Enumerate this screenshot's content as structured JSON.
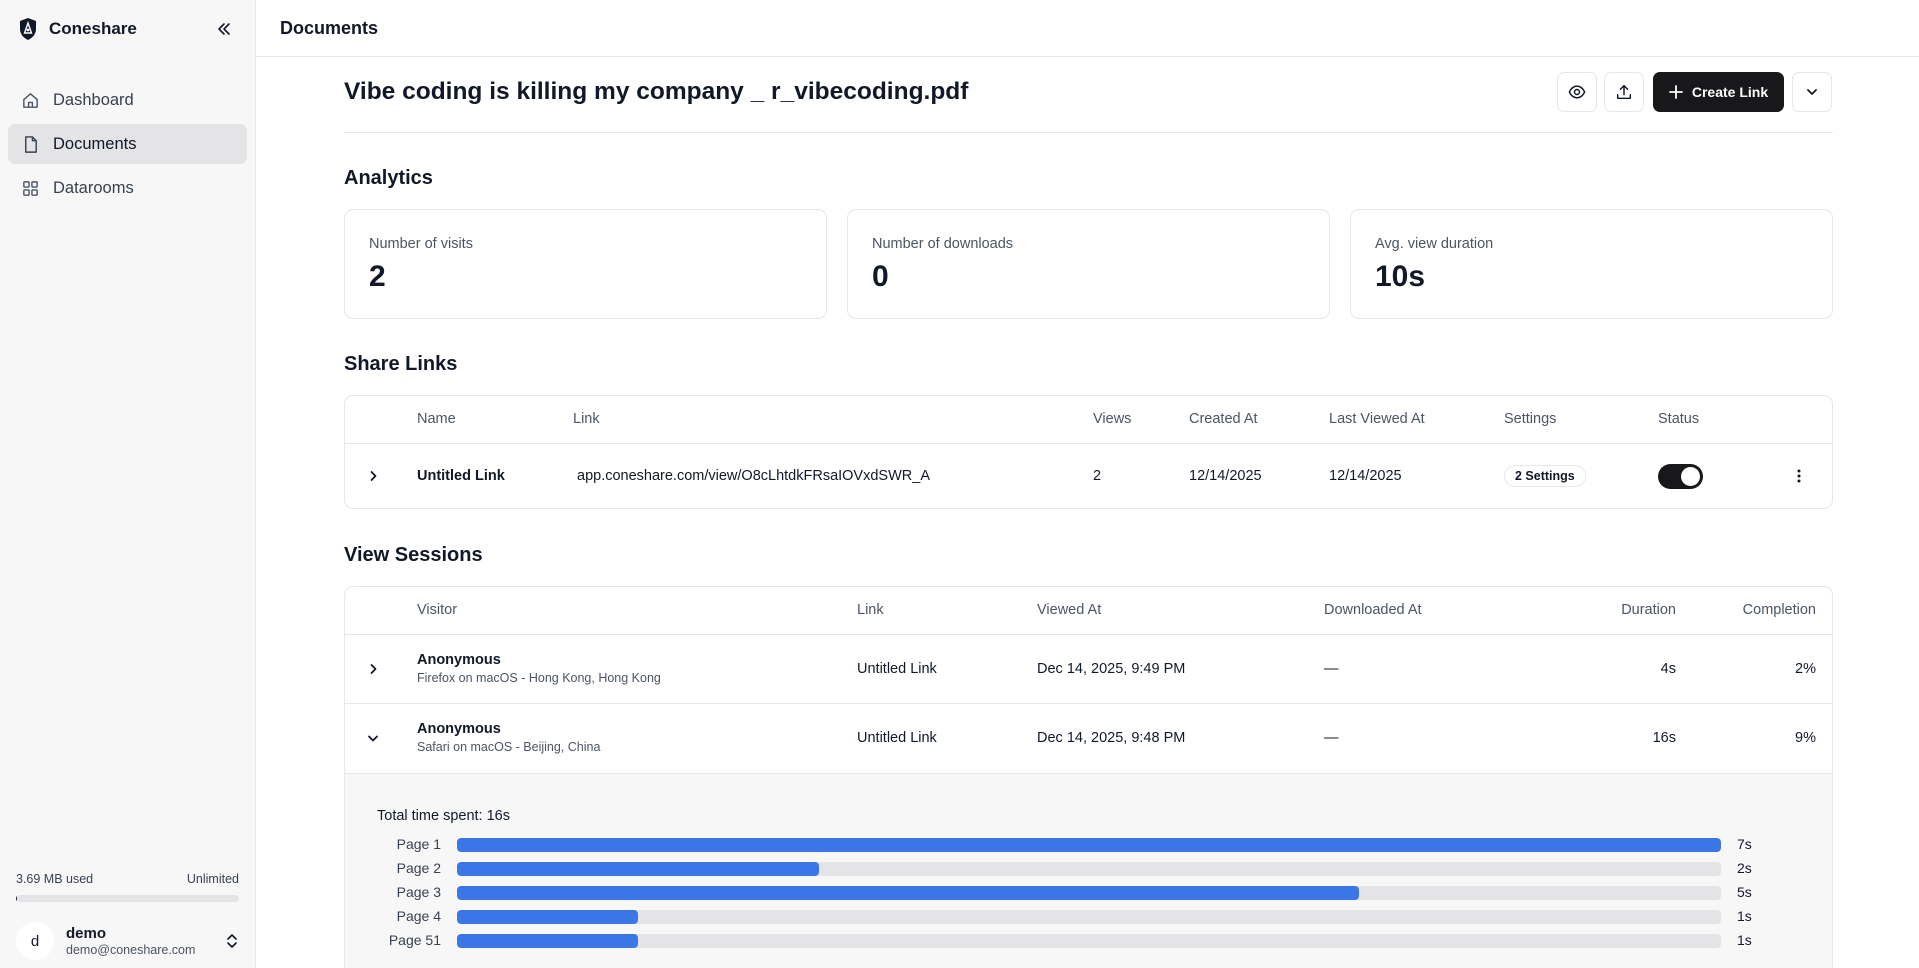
{
  "app": {
    "name": "Coneshare"
  },
  "sidebar": {
    "items": [
      {
        "label": "Dashboard",
        "icon": "home-icon",
        "active": false
      },
      {
        "label": "Documents",
        "icon": "file-icon",
        "active": true
      },
      {
        "label": "Datarooms",
        "icon": "grid-icon",
        "active": false
      }
    ],
    "storage": {
      "used": "3.69 MB used",
      "limit": "Unlimited",
      "fraction": 0.005
    },
    "user": {
      "initial": "d",
      "name": "demo",
      "email": "demo@coneshare.com"
    }
  },
  "header": {
    "title": "Documents"
  },
  "document": {
    "title": "Vibe coding is killing my company _ r_vibecoding.pdf",
    "create_link_label": "Create Link"
  },
  "analytics": {
    "title": "Analytics",
    "cards": [
      {
        "label": "Number of visits",
        "value": "2"
      },
      {
        "label": "Number of downloads",
        "value": "0"
      },
      {
        "label": "Avg. view duration",
        "value": "10s"
      }
    ]
  },
  "share_links": {
    "title": "Share Links",
    "columns": [
      "Name",
      "Link",
      "Views",
      "Created At",
      "Last Viewed At",
      "Settings",
      "Status"
    ],
    "rows": [
      {
        "name": "Untitled Link",
        "link": "app.coneshare.com/view/O8cLhtdkFRsaIOVxdSWR_A",
        "views": "2",
        "created_at": "12/14/2025",
        "last_viewed_at": "12/14/2025",
        "settings": "2 Settings",
        "status_on": true
      }
    ]
  },
  "view_sessions": {
    "title": "View Sessions",
    "columns": [
      "Visitor",
      "Link",
      "Viewed At",
      "Downloaded At",
      "Duration",
      "Completion"
    ],
    "rows": [
      {
        "visitor": "Anonymous",
        "detail": "Firefox on macOS - Hong Kong, Hong Kong",
        "link": "Untitled Link",
        "viewed_at": "Dec 14, 2025, 9:49 PM",
        "downloaded_at": "—",
        "duration": "4s",
        "completion": "2%",
        "expanded": false
      },
      {
        "visitor": "Anonymous",
        "detail": "Safari on macOS - Beijing, China",
        "link": "Untitled Link",
        "viewed_at": "Dec 14, 2025, 9:48 PM",
        "downloaded_at": "—",
        "duration": "16s",
        "completion": "9%",
        "expanded": true
      }
    ],
    "expanded_detail": {
      "total_time": "Total time spent: 16s",
      "pages": [
        {
          "label": "Page 1",
          "time": "7s",
          "fraction": 1.0
        },
        {
          "label": "Page 2",
          "time": "2s",
          "fraction": 0.286
        },
        {
          "label": "Page 3",
          "time": "5s",
          "fraction": 0.714
        },
        {
          "label": "Page 4",
          "time": "1s",
          "fraction": 0.143
        },
        {
          "label": "Page 51",
          "time": "1s",
          "fraction": 0.143
        }
      ]
    }
  }
}
